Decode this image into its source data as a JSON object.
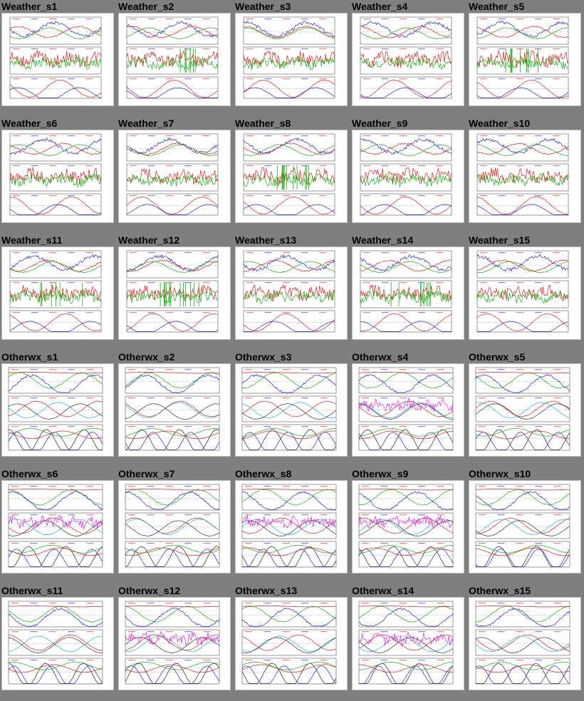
{
  "window": {
    "title": ""
  },
  "colors": {
    "page_background": "#7f7f7f",
    "series_blue": "#2323d8",
    "series_red": "#e01b1b",
    "series_green": "#12b012",
    "series_magenta": "#e000e0",
    "series_cyan": "#18b8d8"
  },
  "grid": {
    "columns": 5,
    "rows": 6,
    "items": [
      {
        "title": "Weather_s1",
        "kind": "weather"
      },
      {
        "title": "Weather_s2",
        "kind": "weather"
      },
      {
        "title": "Weather_s3",
        "kind": "weather"
      },
      {
        "title": "Weather_s4",
        "kind": "weather"
      },
      {
        "title": "Weather_s5",
        "kind": "weather"
      },
      {
        "title": "Weather_s6",
        "kind": "weather"
      },
      {
        "title": "Weather_s7",
        "kind": "weather"
      },
      {
        "title": "Weather_s8",
        "kind": "weather"
      },
      {
        "title": "Weather_s9",
        "kind": "weather"
      },
      {
        "title": "Weather_s10",
        "kind": "weather"
      },
      {
        "title": "Weather_s11",
        "kind": "weather"
      },
      {
        "title": "Weather_s12",
        "kind": "weather"
      },
      {
        "title": "Weather_s13",
        "kind": "weather"
      },
      {
        "title": "Weather_s14",
        "kind": "weather"
      },
      {
        "title": "Weather_s15",
        "kind": "weather"
      },
      {
        "title": "Otherwx_s1",
        "kind": "otherwx"
      },
      {
        "title": "Otherwx_s2",
        "kind": "otherwx"
      },
      {
        "title": "Otherwx_s3",
        "kind": "otherwx"
      },
      {
        "title": "Otherwx_s4",
        "kind": "otherwx"
      },
      {
        "title": "Otherwx_s5",
        "kind": "otherwx"
      },
      {
        "title": "Otherwx_s6",
        "kind": "otherwx"
      },
      {
        "title": "Otherwx_s7",
        "kind": "otherwx"
      },
      {
        "title": "Otherwx_s8",
        "kind": "otherwx"
      },
      {
        "title": "Otherwx_s9",
        "kind": "otherwx"
      },
      {
        "title": "Otherwx_s10",
        "kind": "otherwx"
      },
      {
        "title": "Otherwx_s11",
        "kind": "otherwx"
      },
      {
        "title": "Otherwx_s12",
        "kind": "otherwx"
      },
      {
        "title": "Otherwx_s13",
        "kind": "otherwx"
      },
      {
        "title": "Otherwx_s14",
        "kind": "otherwx"
      },
      {
        "title": "Otherwx_s15",
        "kind": "otherwx"
      }
    ]
  }
}
